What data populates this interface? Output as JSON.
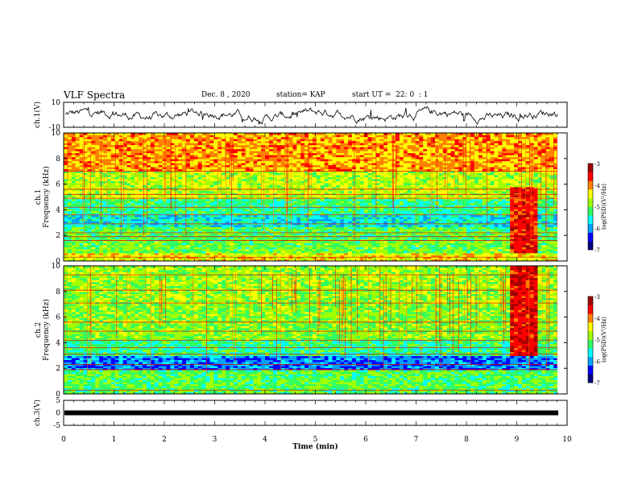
{
  "header": {
    "title": "VLF Spectra",
    "date": "Dec. 8 , 2020",
    "station": "station= KAP",
    "start": "start UT =  22: 0  : 1"
  },
  "colors": {
    "colormap": [
      "#000080",
      "#0000ff",
      "#00a0ff",
      "#00ffff",
      "#30ff60",
      "#a0ff00",
      "#ffff00",
      "#ff8000",
      "#ff0000",
      "#a00000"
    ],
    "trace": "#000000"
  },
  "chart_data": [
    {
      "type": "line",
      "name": "ch1-waveform",
      "ylabel": "ch.1(V)",
      "ylim": [
        -10,
        10
      ],
      "yticks": [
        "10",
        "-10"
      ],
      "xlim": [
        0,
        10
      ]
    },
    {
      "type": "heatmap",
      "name": "ch1-spectrogram",
      "ylabel": "ch.1\nFrequency (kHz)",
      "ylim": [
        0,
        10
      ],
      "yticks": [
        "0",
        "2",
        "4",
        "6",
        "8",
        "10"
      ],
      "xlim": [
        0,
        10
      ],
      "colorbar": {
        "label": "log(PSD)(V²/Hz)",
        "range": [
          -7,
          -3
        ],
        "ticks": [
          "-3",
          "-4",
          "-5",
          "-6",
          "-7"
        ]
      },
      "bands": [
        {
          "f": [
            0,
            0.7
          ],
          "level": -4.4
        },
        {
          "f": [
            0.7,
            1.6
          ],
          "level": -5.0
        },
        {
          "f": [
            1.6,
            2.6
          ],
          "level": -5.1
        },
        {
          "f": [
            2.6,
            3.6
          ],
          "level": -5.6
        },
        {
          "f": [
            3.6,
            4.9
          ],
          "level": -5.3
        },
        {
          "f": [
            4.9,
            7.0
          ],
          "level": -4.7
        },
        {
          "f": [
            7.0,
            10.0
          ],
          "level": -4.1
        }
      ],
      "burst": {
        "t": [
          8.8,
          9.4
        ],
        "f": [
          0.6,
          5.8
        ],
        "level": -3.6
      }
    },
    {
      "type": "heatmap",
      "name": "ch2-spectrogram",
      "ylabel": "ch.2\nFrequency (kHz)",
      "ylim": [
        0,
        10
      ],
      "yticks": [
        "0",
        "2",
        "4",
        "6",
        "8",
        "10"
      ],
      "xlim": [
        0,
        10
      ],
      "colorbar": {
        "label": "log(PSD)(V²/Hz)",
        "range": [
          -7,
          -3
        ],
        "ticks": [
          "-3",
          "-4",
          "-5",
          "-6",
          "-7"
        ]
      },
      "bands": [
        {
          "f": [
            0,
            1.8
          ],
          "level": -5.1
        },
        {
          "f": [
            1.8,
            3.0
          ],
          "level": -6.1
        },
        {
          "f": [
            3.0,
            4.2
          ],
          "level": -5.3
        },
        {
          "f": [
            4.2,
            7.0
          ],
          "level": -4.9
        },
        {
          "f": [
            7.0,
            10.0
          ],
          "level": -4.8
        }
      ],
      "burst": {
        "t": [
          8.8,
          9.4
        ],
        "f": [
          3.0,
          10.0
        ],
        "level": -3.5
      }
    },
    {
      "type": "line",
      "name": "ch3-waveform",
      "ylabel": "ch.3(V)",
      "ylim": [
        -5,
        5
      ],
      "yticks": [
        "5",
        "0",
        "-5"
      ],
      "xlim": [
        0,
        10
      ]
    }
  ],
  "xaxis": {
    "label": "Time (min)",
    "ticks": [
      "0",
      "1",
      "2",
      "3",
      "4",
      "5",
      "6",
      "7",
      "8",
      "9",
      "10"
    ]
  }
}
